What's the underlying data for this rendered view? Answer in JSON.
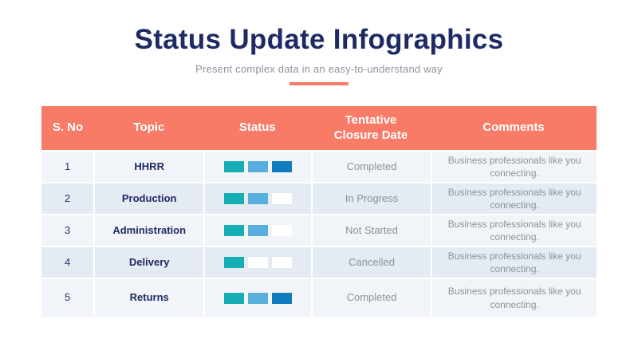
{
  "header": {
    "title": "Status Update Infographics",
    "subtitle": "Present complex data in an easy-to-understand way"
  },
  "colors": {
    "accent": "#F87B67",
    "navy": "#1E2A63",
    "teal": "#15AEB5",
    "lightblue": "#58AFDD",
    "darkblue": "#0F7DBD",
    "white": "#FFFFFF",
    "row_light": "#F1F5F9",
    "row_dark": "#E4EBF2",
    "muted_text": "#8C9299"
  },
  "chart_data": {
    "type": "table",
    "title": "Status Update Infographics",
    "columns": [
      "S. No",
      "Topic",
      "Status",
      "Tentative Closure Date",
      "Comments"
    ],
    "rows": [
      {
        "no": "1",
        "topic": "HHRR",
        "status_bars": [
          "teal",
          "lightblue",
          "darkblue"
        ],
        "status_filled_segments": 3,
        "closure": "Completed",
        "comments": "Business professionals like you connecting."
      },
      {
        "no": "2",
        "topic": "Production",
        "status_bars": [
          "teal",
          "lightblue",
          "white"
        ],
        "status_filled_segments": 2,
        "closure": "In Progress",
        "comments": "Business professionals like you connecting."
      },
      {
        "no": "3",
        "topic": "Administration",
        "status_bars": [
          "teal",
          "lightblue",
          "white"
        ],
        "status_filled_segments": 2,
        "closure": "Not Started",
        "comments": "Business professionals like you connecting."
      },
      {
        "no": "4",
        "topic": "Delivery",
        "status_bars": [
          "teal",
          "white",
          "white"
        ],
        "status_filled_segments": 1,
        "closure": "Cancelled",
        "comments": "Business professionals like you connecting."
      },
      {
        "no": "5",
        "topic": "Returns",
        "status_bars": [
          "teal",
          "lightblue",
          "darkblue"
        ],
        "status_filled_segments": 3,
        "closure": "Completed",
        "comments": "Business professionals like you connecting."
      }
    ]
  }
}
